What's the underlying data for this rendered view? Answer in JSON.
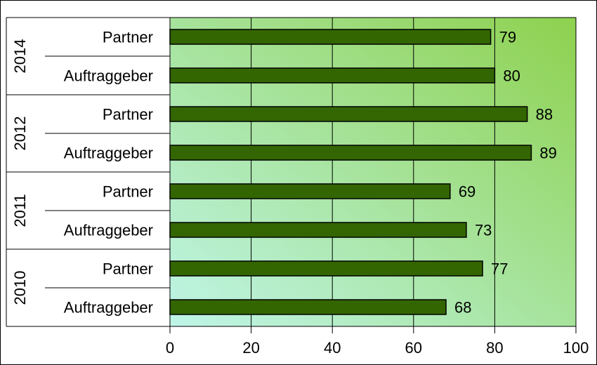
{
  "chart_data": {
    "type": "bar",
    "orientation": "horizontal",
    "groups": [
      {
        "year": "2014",
        "bars": [
          {
            "label": "Partner",
            "value": 79
          },
          {
            "label": "Auftraggeber",
            "value": 80
          }
        ]
      },
      {
        "year": "2012",
        "bars": [
          {
            "label": "Partner",
            "value": 88
          },
          {
            "label": "Auftraggeber",
            "value": 89
          }
        ]
      },
      {
        "year": "2011",
        "bars": [
          {
            "label": "Partner",
            "value": 69
          },
          {
            "label": "Auftraggeber",
            "value": 73
          }
        ]
      },
      {
        "year": "2010",
        "bars": [
          {
            "label": "Partner",
            "value": 77
          },
          {
            "label": "Auftraggeber",
            "value": 68
          }
        ]
      }
    ],
    "xlim": [
      0,
      100
    ],
    "xticks": [
      "0",
      "20",
      "40",
      "60",
      "80",
      "100"
    ],
    "title": "",
    "xlabel": "",
    "ylabel": "",
    "grid": "vertical",
    "legend": "none",
    "colors": {
      "bar_fill": "#336600",
      "bar_stroke": "#000000",
      "plot_gradient_top": "#8ed14e",
      "plot_gradient_bottom": "#bff5e8"
    }
  }
}
